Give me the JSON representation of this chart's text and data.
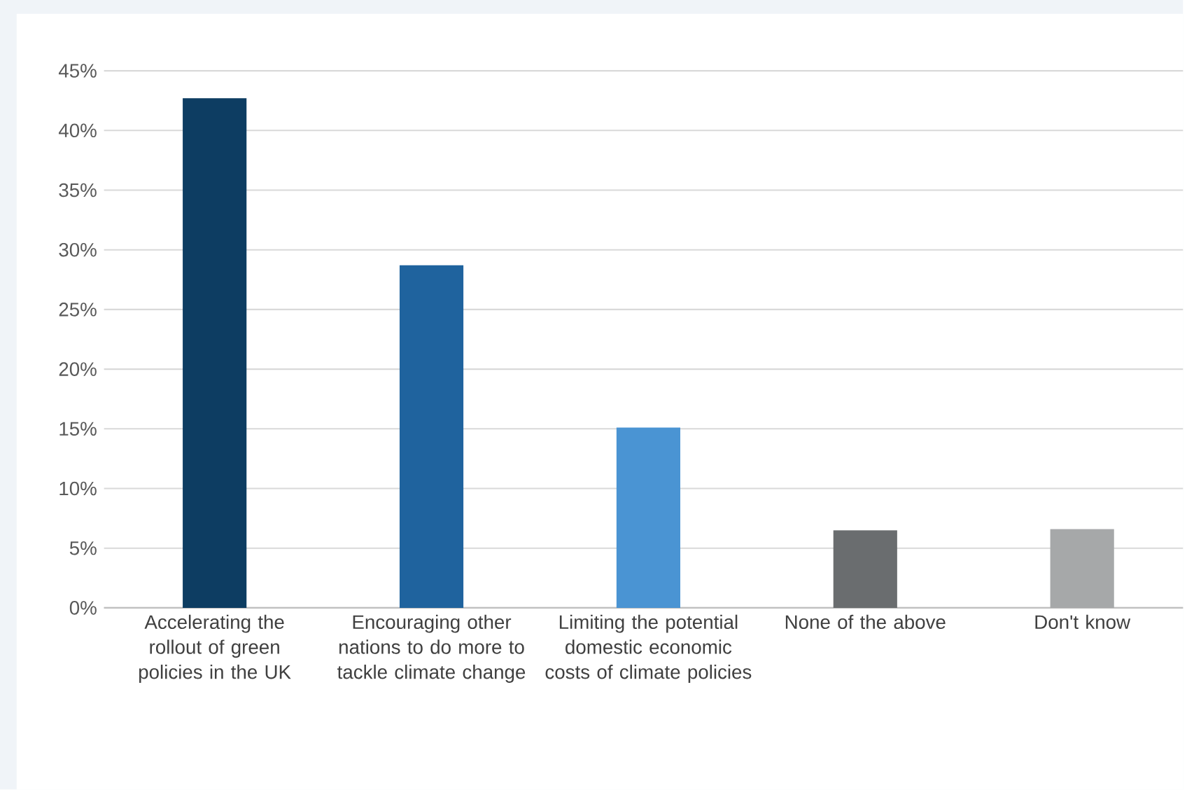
{
  "chart_data": {
    "type": "bar",
    "categories": [
      "Accelerating the rollout of green policies in the UK",
      "Encouraging other nations to do more to tackle climate change",
      "Limiting the potential domestic economic costs of climate policies",
      "None of the above",
      "Don't know"
    ],
    "values": [
      42.7,
      28.7,
      15.1,
      6.5,
      6.6
    ],
    "colors": [
      "#0d3d62",
      "#1f639e",
      "#4a94d3",
      "#6a6d6f",
      "#a6a8a9"
    ],
    "ylim": [
      0,
      45
    ],
    "yticks": [
      {
        "value": 0,
        "label": "0%"
      },
      {
        "value": 5,
        "label": "5%"
      },
      {
        "value": 10,
        "label": "10%"
      },
      {
        "value": 15,
        "label": "15%"
      },
      {
        "value": 20,
        "label": "20%"
      },
      {
        "value": 25,
        "label": "25%"
      },
      {
        "value": 30,
        "label": "30%"
      },
      {
        "value": 35,
        "label": "35%"
      },
      {
        "value": 40,
        "label": "40%"
      },
      {
        "value": 45,
        "label": "45%"
      }
    ],
    "grid": "y"
  }
}
